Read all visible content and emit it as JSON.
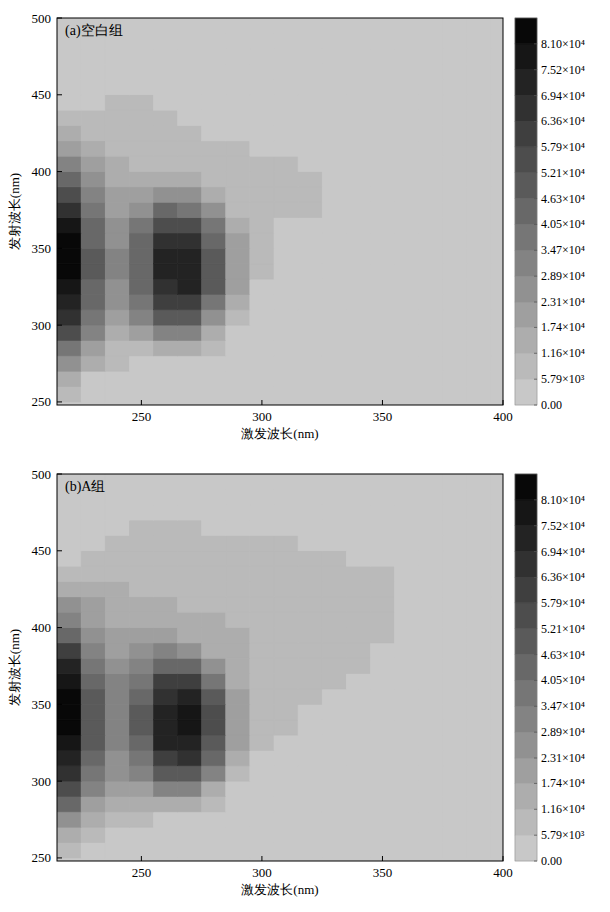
{
  "chart_data": [
    {
      "type": "heatmap",
      "title": "(a)空白组",
      "xlabel": "激发波长(nm)",
      "ylabel": "发射波长(nm)",
      "xlim": [
        215,
        400
      ],
      "ylim": [
        248,
        500
      ],
      "xticks": [
        250,
        300,
        350,
        400
      ],
      "yticks": [
        250,
        300,
        350,
        400,
        450,
        500
      ],
      "x": [
        220,
        230,
        240,
        250,
        260,
        270,
        280,
        290,
        300,
        310,
        320,
        330,
        340,
        350,
        360,
        370,
        380,
        390,
        400
      ],
      "y": [
        255,
        265,
        275,
        285,
        295,
        305,
        315,
        325,
        335,
        345,
        355,
        365,
        375,
        385,
        395,
        405,
        415,
        425,
        435,
        445,
        455,
        465,
        475,
        485,
        495
      ],
      "cells": [
        [
          6000,
          3000,
          0,
          0,
          0,
          0,
          0,
          0,
          0,
          0,
          0,
          0,
          0,
          0,
          0,
          0,
          0,
          0,
          0
        ],
        [
          12000,
          5000,
          3000,
          2000,
          0,
          0,
          0,
          0,
          0,
          0,
          0,
          0,
          0,
          0,
          0,
          0,
          0,
          0,
          0
        ],
        [
          25000,
          12000,
          6000,
          5000,
          4000,
          3000,
          0,
          0,
          0,
          0,
          0,
          0,
          0,
          0,
          0,
          0,
          0,
          0,
          0
        ],
        [
          40000,
          20000,
          10000,
          10000,
          15000,
          12000,
          6000,
          0,
          0,
          0,
          0,
          0,
          0,
          0,
          0,
          0,
          0,
          0,
          0
        ],
        [
          55000,
          30000,
          15000,
          20000,
          32000,
          30000,
          15000,
          3000,
          0,
          0,
          0,
          0,
          0,
          0,
          0,
          0,
          0,
          0,
          0
        ],
        [
          65000,
          38000,
          20000,
          30000,
          48000,
          48000,
          28000,
          8000,
          0,
          0,
          0,
          0,
          0,
          0,
          0,
          0,
          0,
          0,
          0
        ],
        [
          72000,
          42000,
          25000,
          38000,
          60000,
          62000,
          40000,
          14000,
          3000,
          0,
          0,
          0,
          0,
          0,
          0,
          0,
          0,
          0,
          0
        ],
        [
          78000,
          46000,
          28000,
          44000,
          68000,
          70000,
          48000,
          18000,
          5000,
          0,
          0,
          0,
          0,
          0,
          0,
          0,
          0,
          0,
          0
        ],
        [
          84000,
          48000,
          30000,
          46000,
          72000,
          75000,
          52000,
          20000,
          6000,
          0,
          0,
          0,
          0,
          0,
          0,
          0,
          0,
          0,
          0
        ],
        [
          86000,
          48000,
          30000,
          46000,
          72000,
          75000,
          52000,
          20000,
          7000,
          3000,
          0,
          0,
          0,
          0,
          0,
          0,
          0,
          0,
          0
        ],
        [
          84000,
          46000,
          28000,
          42000,
          66000,
          68000,
          46000,
          18000,
          7000,
          4000,
          0,
          0,
          0,
          0,
          0,
          0,
          0,
          0,
          0
        ],
        [
          78000,
          42000,
          26000,
          36000,
          56000,
          56000,
          36000,
          14000,
          7000,
          5000,
          0,
          0,
          0,
          0,
          0,
          0,
          0,
          0,
          0
        ],
        [
          68000,
          36000,
          22000,
          28000,
          42000,
          40000,
          24000,
          11000,
          7000,
          6000,
          6000,
          0,
          0,
          0,
          0,
          0,
          0,
          0,
          0
        ],
        [
          55000,
          30000,
          18000,
          20000,
          28000,
          24000,
          14000,
          9000,
          7000,
          6000,
          6000,
          0,
          0,
          0,
          0,
          0,
          0,
          0,
          0
        ],
        [
          42000,
          24000,
          15000,
          14000,
          17000,
          14000,
          10000,
          8000,
          7000,
          6000,
          6000,
          0,
          0,
          0,
          0,
          0,
          0,
          0,
          0
        ],
        [
          30000,
          18000,
          12000,
          10000,
          10000,
          9000,
          8000,
          7000,
          6000,
          6000,
          0,
          0,
          0,
          0,
          0,
          0,
          0,
          0,
          0
        ],
        [
          20000,
          14000,
          10000,
          8000,
          8000,
          7000,
          7000,
          6000,
          4000,
          0,
          0,
          0,
          0,
          0,
          0,
          0,
          0,
          0,
          0
        ],
        [
          12000,
          10000,
          8000,
          7000,
          7000,
          6000,
          5000,
          3000,
          0,
          0,
          0,
          0,
          0,
          0,
          0,
          0,
          0,
          0,
          0
        ],
        [
          6000,
          8000,
          7000,
          7000,
          6000,
          5000,
          3000,
          0,
          0,
          0,
          0,
          0,
          0,
          0,
          0,
          0,
          0,
          0,
          0
        ],
        [
          0,
          3000,
          6000,
          6000,
          5000,
          3000,
          0,
          0,
          0,
          0,
          0,
          0,
          0,
          0,
          0,
          0,
          0,
          0,
          0
        ],
        [
          0,
          0,
          3000,
          4000,
          3000,
          0,
          0,
          0,
          0,
          0,
          0,
          0,
          0,
          0,
          0,
          0,
          0,
          0,
          0
        ],
        [
          0,
          0,
          0,
          0,
          0,
          0,
          0,
          0,
          0,
          0,
          0,
          0,
          0,
          0,
          0,
          0,
          0,
          0,
          0
        ],
        [
          0,
          0,
          0,
          0,
          0,
          0,
          0,
          0,
          0,
          0,
          0,
          0,
          0,
          0,
          0,
          0,
          0,
          0,
          0
        ],
        [
          0,
          0,
          0,
          0,
          0,
          0,
          0,
          0,
          0,
          0,
          0,
          0,
          0,
          0,
          0,
          0,
          0,
          0,
          0
        ],
        [
          0,
          0,
          0,
          0,
          0,
          0,
          0,
          0,
          0,
          0,
          0,
          0,
          0,
          0,
          0,
          0,
          0,
          0,
          0
        ]
      ],
      "clim": [
        0,
        86800
      ],
      "cticks": [
        {
          "value": 0,
          "label": "0.00"
        },
        {
          "value": 5790,
          "label": "5.79×10³"
        },
        {
          "value": 11600,
          "label": "1.16×10⁴"
        },
        {
          "value": 17400,
          "label": "1.74×10⁴"
        },
        {
          "value": 23100,
          "label": "2.31×10⁴"
        },
        {
          "value": 28900,
          "label": "2.89×10⁴"
        },
        {
          "value": 34700,
          "label": "3.47×10⁴"
        },
        {
          "value": 40500,
          "label": "4.05×10⁴"
        },
        {
          "value": 46300,
          "label": "4.63×10⁴"
        },
        {
          "value": 52100,
          "label": "5.21×10⁴"
        },
        {
          "value": 57900,
          "label": "5.79×10⁴"
        },
        {
          "value": 63600,
          "label": "6.36×10⁴"
        },
        {
          "value": 69400,
          "label": "6.94×10⁴"
        },
        {
          "value": 75200,
          "label": "7.52×10⁴"
        },
        {
          "value": 81000,
          "label": "8.10×10⁴"
        }
      ]
    },
    {
      "type": "heatmap",
      "title": "(b)A组",
      "xlabel": "激发波长(nm)",
      "ylabel": "发射波长(nm)",
      "xlim": [
        215,
        400
      ],
      "ylim": [
        248,
        500
      ],
      "xticks": [
        250,
        300,
        350,
        400
      ],
      "yticks": [
        250,
        300,
        350,
        400,
        450,
        500
      ],
      "x": [
        220,
        230,
        240,
        250,
        260,
        270,
        280,
        290,
        300,
        310,
        320,
        330,
        340,
        350,
        360,
        370,
        380,
        390,
        400
      ],
      "y": [
        255,
        265,
        275,
        285,
        295,
        305,
        315,
        325,
        335,
        345,
        355,
        365,
        375,
        385,
        395,
        405,
        415,
        425,
        435,
        445,
        455,
        465,
        475,
        485,
        495
      ],
      "cells": [
        [
          6000,
          3000,
          0,
          0,
          0,
          0,
          0,
          0,
          0,
          0,
          0,
          0,
          0,
          0,
          0,
          0,
          0,
          0,
          0
        ],
        [
          14000,
          6000,
          3000,
          2000,
          0,
          0,
          0,
          0,
          0,
          0,
          0,
          0,
          0,
          0,
          0,
          0,
          0,
          0,
          0
        ],
        [
          28000,
          14000,
          7000,
          6000,
          5000,
          3000,
          0,
          0,
          0,
          0,
          0,
          0,
          0,
          0,
          0,
          0,
          0,
          0,
          0
        ],
        [
          42000,
          22000,
          12000,
          12000,
          16000,
          13000,
          6000,
          0,
          0,
          0,
          0,
          0,
          0,
          0,
          0,
          0,
          0,
          0,
          0
        ],
        [
          56000,
          32000,
          18000,
          22000,
          34000,
          32000,
          16000,
          4000,
          0,
          0,
          0,
          0,
          0,
          0,
          0,
          0,
          0,
          0,
          0
        ],
        [
          66000,
          40000,
          24000,
          32000,
          50000,
          50000,
          30000,
          9000,
          3000,
          0,
          0,
          0,
          0,
          0,
          0,
          0,
          0,
          0,
          0
        ],
        [
          72000,
          45000,
          28000,
          40000,
          62000,
          64000,
          42000,
          15000,
          5000,
          0,
          0,
          0,
          0,
          0,
          0,
          0,
          0,
          0,
          0
        ],
        [
          78000,
          48000,
          31000,
          46000,
          70000,
          72000,
          50000,
          20000,
          7000,
          4000,
          0,
          0,
          0,
          0,
          0,
          0,
          0,
          0,
          0
        ],
        [
          84000,
          50000,
          32000,
          48000,
          74000,
          77000,
          54000,
          22000,
          8000,
          6000,
          3000,
          0,
          0,
          0,
          0,
          0,
          0,
          0,
          0
        ],
        [
          86000,
          50000,
          32000,
          48000,
          74000,
          77000,
          54000,
          23000,
          9000,
          7000,
          5000,
          0,
          0,
          0,
          0,
          0,
          0,
          0,
          0
        ],
        [
          84000,
          48000,
          31000,
          45000,
          68000,
          70000,
          48000,
          20000,
          10000,
          8000,
          6000,
          4000,
          0,
          0,
          0,
          0,
          0,
          0,
          0
        ],
        [
          78000,
          45000,
          29000,
          40000,
          58000,
          58000,
          38000,
          17000,
          11000,
          9000,
          7000,
          6000,
          4000,
          0,
          0,
          0,
          0,
          0,
          0
        ],
        [
          70000,
          40000,
          25000,
          32000,
          45000,
          42000,
          27000,
          14000,
          11000,
          9000,
          8000,
          7000,
          6000,
          3000,
          0,
          0,
          0,
          0,
          0
        ],
        [
          58000,
          34000,
          21000,
          24000,
          31000,
          27000,
          17000,
          12000,
          11000,
          9000,
          8000,
          7000,
          6000,
          5000,
          0,
          0,
          0,
          0,
          0
        ],
        [
          46000,
          28000,
          18000,
          18000,
          20000,
          17000,
          13000,
          12000,
          11000,
          9000,
          8000,
          7000,
          6000,
          6000,
          3000,
          0,
          0,
          0,
          0
        ],
        [
          34000,
          22000,
          15000,
          14000,
          14000,
          12000,
          12000,
          11000,
          10000,
          8000,
          7000,
          7000,
          6000,
          6000,
          4000,
          0,
          0,
          0,
          0
        ],
        [
          24000,
          18000,
          13000,
          12000,
          12000,
          11000,
          10000,
          9000,
          8000,
          7000,
          7000,
          6000,
          6000,
          6000,
          5000,
          0,
          0,
          0,
          0
        ],
        [
          16000,
          14000,
          12000,
          10000,
          9000,
          9000,
          8000,
          8000,
          7000,
          7000,
          6000,
          6000,
          6000,
          6000,
          5000,
          2000,
          0,
          0,
          0
        ],
        [
          8000,
          10000,
          10000,
          9000,
          8000,
          8000,
          7000,
          7000,
          7000,
          6000,
          6000,
          6000,
          6000,
          6000,
          4000,
          0,
          0,
          0,
          0
        ],
        [
          2000,
          6000,
          8000,
          8000,
          7000,
          7000,
          7000,
          6000,
          6000,
          6000,
          6000,
          6000,
          5000,
          4000,
          0,
          0,
          0,
          0,
          0
        ],
        [
          0,
          3000,
          6000,
          7000,
          7000,
          6000,
          6000,
          6000,
          6000,
          6000,
          5000,
          4000,
          0,
          0,
          0,
          0,
          0,
          0,
          0
        ],
        [
          0,
          0,
          3000,
          6000,
          6000,
          6000,
          5000,
          4000,
          3000,
          0,
          0,
          0,
          0,
          0,
          0,
          0,
          0,
          0,
          0
        ],
        [
          0,
          0,
          0,
          3000,
          4000,
          3000,
          0,
          0,
          0,
          0,
          0,
          0,
          0,
          0,
          0,
          0,
          0,
          0,
          0
        ],
        [
          0,
          0,
          0,
          0,
          0,
          0,
          0,
          0,
          0,
          0,
          0,
          0,
          0,
          0,
          0,
          0,
          0,
          0,
          0
        ],
        [
          0,
          0,
          0,
          0,
          0,
          0,
          0,
          0,
          0,
          0,
          0,
          0,
          0,
          0,
          0,
          0,
          0,
          0,
          0
        ]
      ],
      "clim": [
        0,
        86800
      ],
      "cticks": [
        {
          "value": 0,
          "label": "0.00"
        },
        {
          "value": 5790,
          "label": "5.79×10³"
        },
        {
          "value": 11600,
          "label": "1.16×10⁴"
        },
        {
          "value": 17400,
          "label": "1.74×10⁴"
        },
        {
          "value": 23100,
          "label": "2.31×10⁴"
        },
        {
          "value": 28900,
          "label": "2.89×10⁴"
        },
        {
          "value": 34700,
          "label": "3.47×10⁴"
        },
        {
          "value": 40500,
          "label": "4.05×10⁴"
        },
        {
          "value": 46300,
          "label": "4.63×10⁴"
        },
        {
          "value": 52100,
          "label": "5.21×10⁴"
        },
        {
          "value": 57900,
          "label": "5.79×10⁴"
        },
        {
          "value": 63600,
          "label": "6.36×10⁴"
        },
        {
          "value": 69400,
          "label": "6.94×10⁴"
        },
        {
          "value": 75200,
          "label": "7.52×10⁴"
        },
        {
          "value": 81000,
          "label": "8.10×10⁴"
        }
      ]
    }
  ]
}
